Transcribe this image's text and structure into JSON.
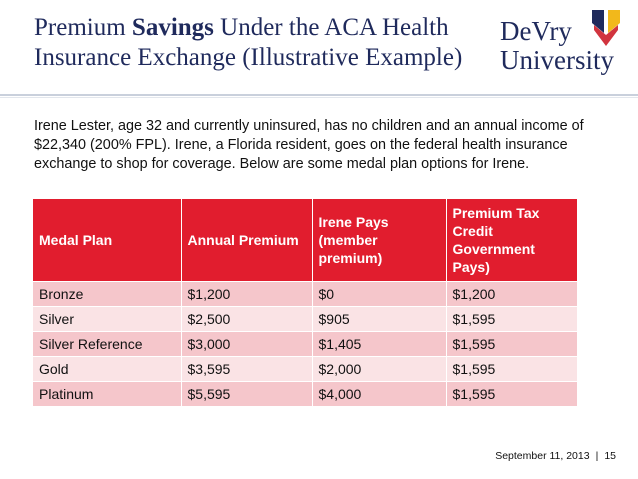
{
  "slide": {
    "title_pre": "Premium ",
    "title_bold": "Savings",
    "title_post": " Under the ACA Health Insurance Exchange (Illustrative Example)",
    "intro": "Irene Lester, age 32 and currently uninsured, has no children and an annual income of $22,340 (200% FPL).  Irene, a Florida resident, goes on the federal health insurance exchange to shop for coverage. Below are some medal plan options for Irene."
  },
  "logo": {
    "line1": "DeVry",
    "line2": "University",
    "colors": {
      "text": "#1f2a5c",
      "shield_left": "#1f2a5c",
      "shield_right": "#f2b81b",
      "shield_mid": "#d1343e"
    }
  },
  "table": {
    "headers": [
      "Medal Plan",
      "Annual Premium",
      "Irene Pays (member premium)",
      "Premium Tax Credit Government Pays)"
    ],
    "rows": [
      [
        "Bronze",
        "$1,200",
        "$0",
        "$1,200"
      ],
      [
        "Silver",
        "$2,500",
        "$905",
        "$1,595"
      ],
      [
        "Silver Reference",
        "$3,000",
        "$1,405",
        "$1,595"
      ],
      [
        "Gold",
        "$3,595",
        "$2,000",
        "$1,595"
      ],
      [
        "Platinum",
        "$5,595",
        "$4,000",
        "$1,595"
      ]
    ],
    "colors": {
      "header_bg": "#e11d2e",
      "row_odd": "#f5c6cb",
      "row_even": "#fae3e5"
    }
  },
  "footer": {
    "date": "September 11, 2013",
    "separator": "|",
    "page": "15"
  }
}
